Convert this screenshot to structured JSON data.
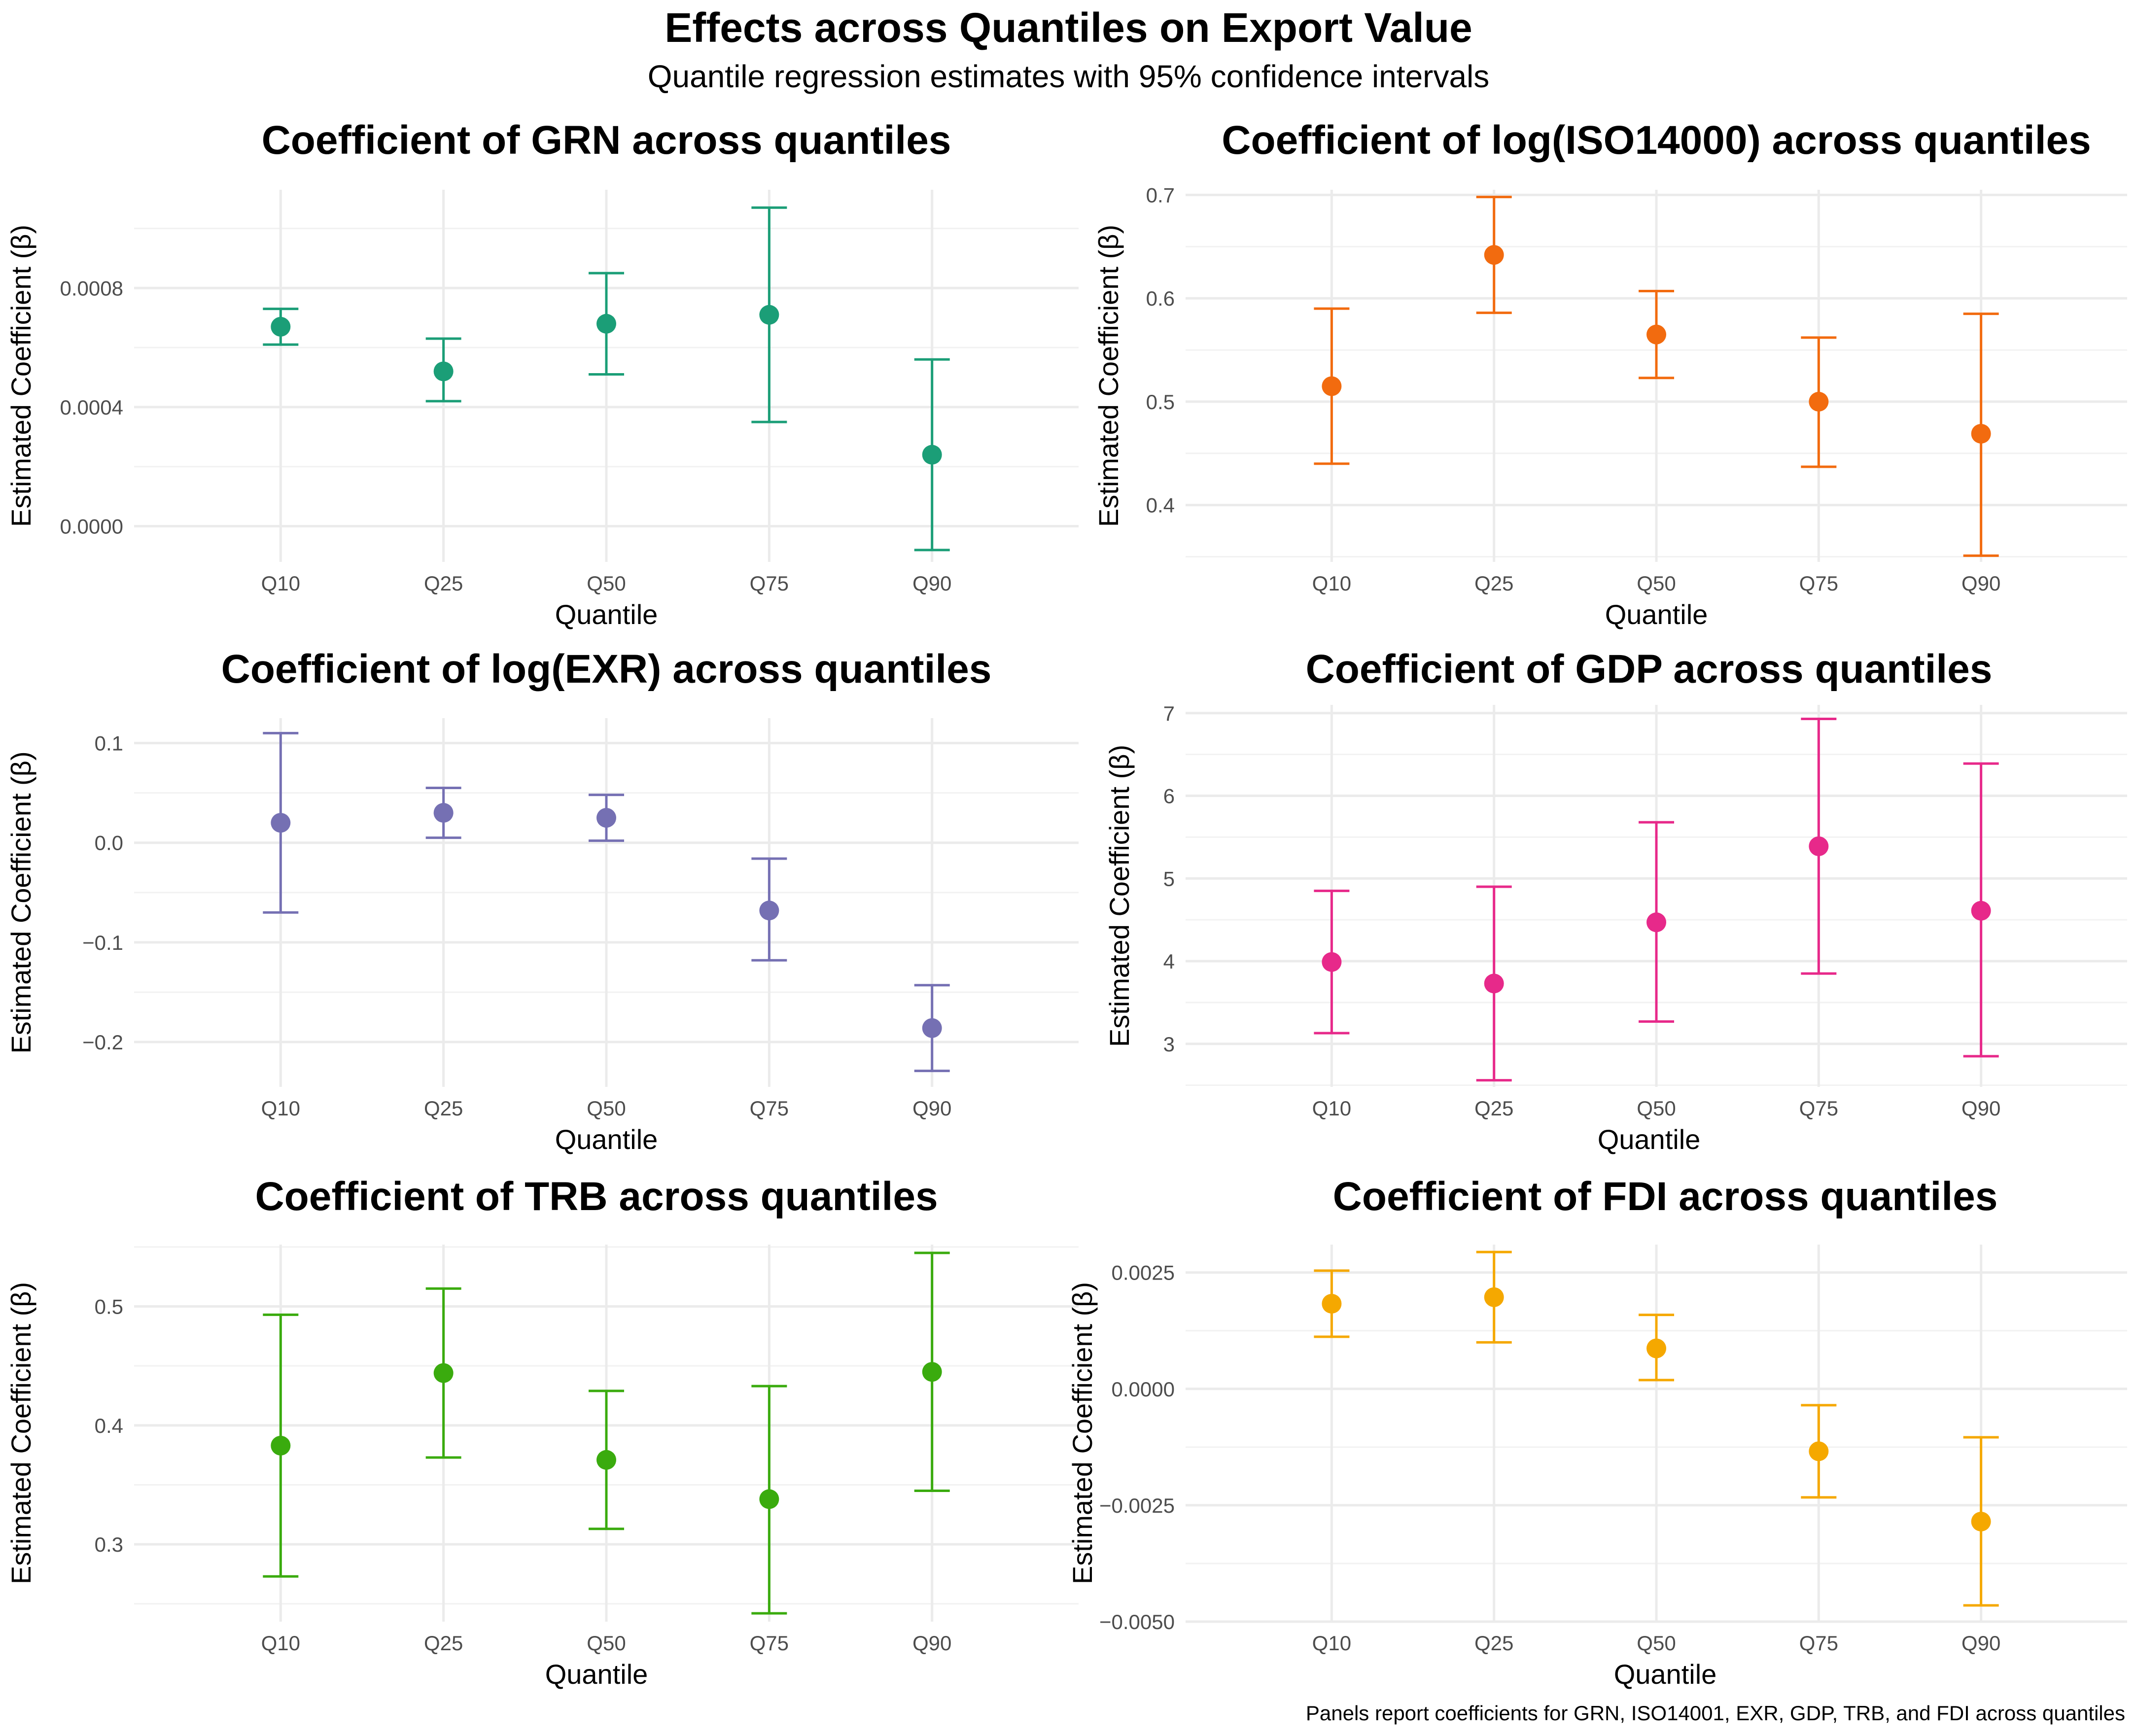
{
  "figure": {
    "title": "Effects across Quantiles on Export Value",
    "subtitle": "Quantile regression estimates with 95% confidence intervals",
    "caption": "Panels report coefficients for GRN, ISO14001, EXR, GDP, TRB, and FDI across quantiles"
  },
  "chart_data": [
    {
      "type": "scatter",
      "title": "Coefficient of GRN across quantiles",
      "xlabel": "Quantile",
      "ylabel": "Estimated Coefficient (β)",
      "color": "#1b9e77",
      "categories": [
        "Q10",
        "Q25",
        "Q50",
        "Q75",
        "Q90"
      ],
      "values": [
        0.00067,
        0.00052,
        0.00068,
        0.00071,
        0.00024
      ],
      "lower": [
        0.00061,
        0.00042,
        0.00051,
        0.00035,
        -8e-05
      ],
      "upper": [
        0.00073,
        0.00063,
        0.00085,
        0.00107,
        0.00056
      ],
      "ylim": [
        -0.00012,
        0.00113
      ],
      "yticks": [
        0.0,
        0.0004,
        0.0008
      ],
      "ytick_labels": [
        "0.0000",
        "0.0004",
        "0.0008"
      ]
    },
    {
      "type": "scatter",
      "title": "Coefficient of log(ISO14000) across quantiles",
      "xlabel": "Quantile",
      "ylabel": "Estimated Coefficient (β)",
      "color": "#f26b0f",
      "categories": [
        "Q10",
        "Q25",
        "Q50",
        "Q75",
        "Q90"
      ],
      "values": [
        0.515,
        0.642,
        0.565,
        0.5,
        0.469
      ],
      "lower": [
        0.44,
        0.586,
        0.523,
        0.437,
        0.351
      ],
      "upper": [
        0.59,
        0.698,
        0.607,
        0.562,
        0.585
      ],
      "ylim": [
        0.345,
        0.705
      ],
      "yticks": [
        0.4,
        0.5,
        0.6,
        0.7
      ],
      "ytick_labels": [
        "0.4",
        "0.5",
        "0.6",
        "0.7"
      ]
    },
    {
      "type": "scatter",
      "title": "Coefficient of log(EXR) across quantiles",
      "xlabel": "Quantile",
      "ylabel": "Estimated Coefficient (β)",
      "color": "#7570b3",
      "categories": [
        "Q10",
        "Q25",
        "Q50",
        "Q75",
        "Q90"
      ],
      "values": [
        0.02,
        0.03,
        0.025,
        -0.068,
        -0.186
      ],
      "lower": [
        -0.07,
        0.005,
        0.002,
        -0.118,
        -0.229
      ],
      "upper": [
        0.11,
        0.055,
        0.048,
        -0.016,
        -0.143
      ],
      "ylim": [
        -0.245,
        0.125
      ],
      "yticks": [
        -0.2,
        -0.1,
        0.0,
        0.1
      ],
      "ytick_labels": [
        "−0.2",
        "−0.1",
        "0.0",
        "0.1"
      ]
    },
    {
      "type": "scatter",
      "title": "Coefficient of GDP across quantiles",
      "xlabel": "Quantile",
      "ylabel": "Estimated Coefficient (β)",
      "color": "#e7298a",
      "categories": [
        "Q10",
        "Q25",
        "Q50",
        "Q75",
        "Q90"
      ],
      "values": [
        3.99,
        3.73,
        4.47,
        5.39,
        4.61
      ],
      "lower": [
        3.13,
        2.56,
        3.27,
        3.85,
        2.85
      ],
      "upper": [
        4.85,
        4.9,
        5.68,
        6.93,
        6.39
      ],
      "ylim": [
        2.48,
        7.1
      ],
      "yticks": [
        3,
        4,
        5,
        6,
        7
      ],
      "ytick_labels": [
        "3",
        "4",
        "5",
        "6",
        "7"
      ]
    },
    {
      "type": "scatter",
      "title": "Coefficient of TRB across quantiles",
      "xlabel": "Quantile",
      "ylabel": "Estimated Coefficient (β)",
      "color": "#3aab0e",
      "categories": [
        "Q10",
        "Q25",
        "Q50",
        "Q75",
        "Q90"
      ],
      "values": [
        0.383,
        0.444,
        0.371,
        0.338,
        0.445
      ],
      "lower": [
        0.273,
        0.373,
        0.313,
        0.242,
        0.345
      ],
      "upper": [
        0.493,
        0.515,
        0.429,
        0.433,
        0.545
      ],
      "ylim": [
        0.235,
        0.552
      ],
      "yticks": [
        0.3,
        0.4,
        0.5
      ],
      "ytick_labels": [
        "0.3",
        "0.4",
        "0.5"
      ]
    },
    {
      "type": "scatter",
      "title": "Coefficient of FDI across quantiles",
      "xlabel": "Quantile",
      "ylabel": "Estimated Coefficient (β)",
      "color": "#f5a800",
      "categories": [
        "Q10",
        "Q25",
        "Q50",
        "Q75",
        "Q90"
      ],
      "values": [
        0.00183,
        0.00197,
        0.00087,
        -0.00134,
        -0.00285
      ],
      "lower": [
        0.00112,
        0.001,
        0.00019,
        -0.00233,
        -0.00465
      ],
      "upper": [
        0.00254,
        0.00294,
        0.00159,
        -0.00035,
        -0.00104
      ],
      "ylim": [
        -0.005,
        0.0031
      ],
      "yticks": [
        -0.005,
        -0.0025,
        0.0,
        0.0025
      ],
      "ytick_labels": [
        "−0.0050",
        "−0.0025",
        "0.0000",
        "0.0025"
      ]
    }
  ]
}
